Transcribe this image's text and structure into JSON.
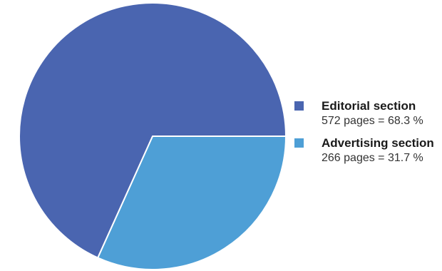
{
  "chart_data": {
    "type": "pie",
    "series": [
      {
        "name": "Editorial section",
        "value": 572,
        "percent": 68.3,
        "detail": "572 pages = 68.3 %",
        "color": "#4a65b0"
      },
      {
        "name": "Advertising section",
        "value": 266,
        "percent": 31.7,
        "detail": "266 pages = 31.7 %",
        "color": "#4e9fd6"
      }
    ],
    "legend_position": "right"
  }
}
